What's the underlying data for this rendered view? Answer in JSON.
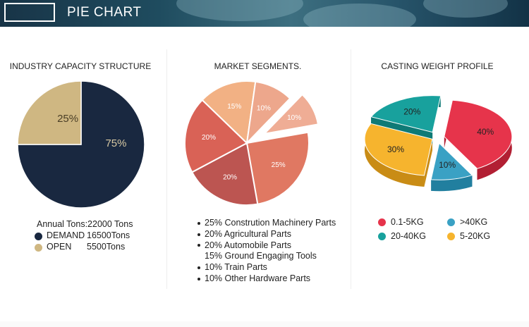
{
  "header": {
    "title": "PIE CHART"
  },
  "colors": {
    "demand": "#192840",
    "open": "#cfb782",
    "seg1": "#e07862",
    "seg2": "#bc5551",
    "seg3": "#d96256",
    "seg4": "#f2b184",
    "seg5": "#eda78c",
    "seg6": "#efad95",
    "w1": "#e6344b",
    "w2": "#18a19d",
    "w3": "#f6b42e",
    "w4": "#3aa1c4"
  },
  "capacity": {
    "title": "INDUSTRY CAPACITY STRUCTURE",
    "annual": "Annual Tons:22000 Tons",
    "legend": [
      {
        "label": "DEMAND",
        "value": "16500Tons"
      },
      {
        "label": "OPEN",
        "value": "5500Tons"
      }
    ]
  },
  "segments": {
    "title": "MARKET SEGMENTS.",
    "list": [
      {
        "text": "25% Constrution Machinery Parts",
        "bullet": true
      },
      {
        "text": "20% Agricultural Parts",
        "bullet": true
      },
      {
        "text": "20% Automobile Parts",
        "bullet": true
      },
      {
        "text": "15% Ground Engaging Tools",
        "bullet": false
      },
      {
        "text": "10% Train Parts",
        "bullet": true
      },
      {
        "text": "10% Other Hardware Parts",
        "bullet": true
      }
    ]
  },
  "weight": {
    "title": "CASTING WEIGHT PROFILE",
    "legend": [
      {
        "label": "0.1-5KG",
        "color": "#e6344b"
      },
      {
        "label": ">40KG",
        "color": "#3aa1c4"
      },
      {
        "label": "20-40KG",
        "color": "#18a19d"
      },
      {
        "label": "5-20KG",
        "color": "#f6b42e"
      }
    ]
  },
  "chart_data": [
    {
      "type": "pie",
      "title": "INDUSTRY CAPACITY STRUCTURE",
      "categories": [
        "DEMAND",
        "OPEN"
      ],
      "values": [
        75,
        25
      ],
      "labels": [
        "75%",
        "25%"
      ]
    },
    {
      "type": "pie",
      "title": "MARKET SEGMENTS.",
      "categories": [
        "Constrution Machinery Parts",
        "Agricultural Parts",
        "Automobile Parts",
        "Ground Engaging Tools",
        "Train Parts",
        "Other Hardware Parts"
      ],
      "values": [
        25,
        20,
        20,
        15,
        10,
        10
      ],
      "labels": [
        "25%",
        "20%",
        "20%",
        "15%",
        "10%",
        "10%"
      ]
    },
    {
      "type": "pie",
      "title": "CASTING WEIGHT PROFILE",
      "categories": [
        "0.1-5KG",
        ">40KG",
        "5-20KG",
        "20-40KG"
      ],
      "values": [
        40,
        10,
        30,
        20
      ],
      "labels": [
        "40%",
        "10%",
        "30%",
        "20%"
      ]
    }
  ]
}
